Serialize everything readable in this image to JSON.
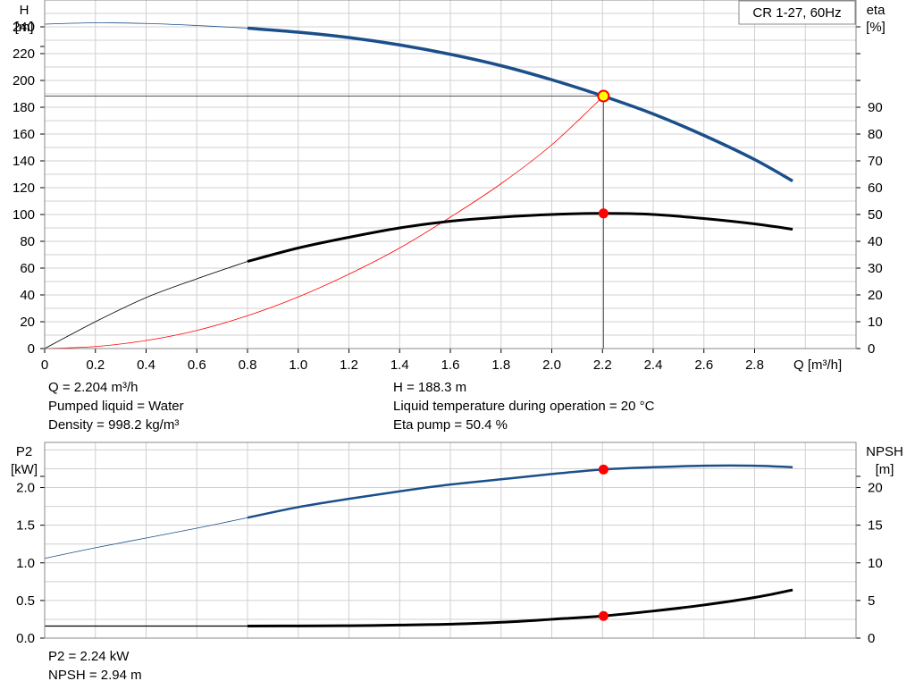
{
  "legend_label": "CR 1-27, 60Hz",
  "colors": {
    "blue": "#1b4f8a",
    "black": "#000000",
    "red": "#ff0000",
    "op_point_fill": "#ffff00",
    "grid": "#d0d0d0"
  },
  "info_top": {
    "q": "Q = 2.204 m³/h",
    "liquid": "Pumped liquid = Water",
    "density": "Density = 998.2 kg/m³",
    "h": "H = 188.3 m",
    "temp": "Liquid temperature during operation = 20 °C",
    "eta": "Eta pump = 50.4 %"
  },
  "info_bottom": {
    "p2": "P2 = 2.24 kW",
    "npsh": "NPSH = 2.94 m"
  },
  "chart_data": [
    {
      "type": "line",
      "title": "",
      "x_label": "Q [m³/h]",
      "y_label_left": [
        "H",
        "[m]"
      ],
      "y_label_right": [
        "eta",
        "[%]"
      ],
      "xlim": [
        0,
        3.2
      ],
      "ylim_left": [
        0,
        260
      ],
      "ylim_right": [
        0,
        130
      ],
      "x_ticks": [
        "0",
        "0.2",
        "0.4",
        "0.6",
        "0.8",
        "1.0",
        "1.2",
        "1.4",
        "1.6",
        "1.8",
        "2.0",
        "2.2",
        "2.4",
        "2.6",
        "2.8"
      ],
      "y_ticks_left": [
        0,
        20,
        40,
        60,
        80,
        100,
        120,
        140,
        160,
        180,
        200,
        220,
        240
      ],
      "y_ticks_right": [
        0,
        10,
        20,
        30,
        40,
        50,
        60,
        70,
        80,
        90
      ],
      "grid": true,
      "operating_point": {
        "q": 2.204,
        "h": 188.3,
        "eta": 50.4
      },
      "series": [
        {
          "key": "head",
          "axis": "left",
          "points": [
            [
              0,
              242
            ],
            [
              0.2,
              243
            ],
            [
              0.4,
              242.5
            ],
            [
              0.6,
              241
            ],
            [
              0.8,
              239
            ],
            [
              1.0,
              236
            ],
            [
              1.2,
              232
            ],
            [
              1.4,
              226.5
            ],
            [
              1.6,
              219.5
            ],
            [
              1.8,
              211
            ],
            [
              2.0,
              200.5
            ],
            [
              2.2,
              188.5
            ],
            [
              2.4,
              175
            ],
            [
              2.6,
              159
            ],
            [
              2.8,
              141
            ],
            [
              2.95,
              125
            ]
          ],
          "bold_from": 0.8
        },
        {
          "key": "eta",
          "axis": "right",
          "points": [
            [
              0,
              0
            ],
            [
              0.2,
              10
            ],
            [
              0.4,
              19
            ],
            [
              0.6,
              26
            ],
            [
              0.8,
              32.5
            ],
            [
              1.0,
              37.5
            ],
            [
              1.2,
              41.5
            ],
            [
              1.4,
              45
            ],
            [
              1.6,
              47.5
            ],
            [
              1.8,
              49
            ],
            [
              2.0,
              50
            ],
            [
              2.2,
              50.4
            ],
            [
              2.4,
              50
            ],
            [
              2.6,
              48.5
            ],
            [
              2.8,
              46.5
            ],
            [
              2.95,
              44.5
            ]
          ],
          "bold_from": 0.8
        },
        {
          "key": "system",
          "axis": "left",
          "points": [
            [
              0,
              0
            ],
            [
              0.2,
              1.5
            ],
            [
              0.4,
              6
            ],
            [
              0.6,
              13.5
            ],
            [
              0.8,
              24.5
            ],
            [
              1.0,
              38.5
            ],
            [
              1.2,
              55.5
            ],
            [
              1.4,
              75
            ],
            [
              1.6,
              98
            ],
            [
              1.8,
              123
            ],
            [
              2.0,
              152
            ],
            [
              2.204,
              188.3
            ]
          ]
        }
      ]
    },
    {
      "type": "line",
      "title": "",
      "x_label": "",
      "y_label_left": [
        "P2",
        "[kW]"
      ],
      "y_label_right": [
        "NPSH",
        "[m]"
      ],
      "xlim": [
        0,
        3.2
      ],
      "ylim_left": [
        0,
        2.6
      ],
      "ylim_right": [
        0,
        26
      ],
      "y_ticks_left": [
        "0.0",
        "0.5",
        "1.0",
        "1.5",
        "2.0"
      ],
      "y_ticks_right": [
        0,
        5,
        10,
        15,
        20
      ],
      "grid": true,
      "operating_point": {
        "q": 2.204,
        "p2": 2.24,
        "npsh": 2.94
      },
      "series": [
        {
          "key": "p2",
          "axis": "left",
          "points": [
            [
              0,
              1.06
            ],
            [
              0.2,
              1.2
            ],
            [
              0.4,
              1.33
            ],
            [
              0.6,
              1.46
            ],
            [
              0.8,
              1.6
            ],
            [
              1.0,
              1.74
            ],
            [
              1.2,
              1.85
            ],
            [
              1.4,
              1.95
            ],
            [
              1.6,
              2.04
            ],
            [
              1.8,
              2.11
            ],
            [
              2.0,
              2.18
            ],
            [
              2.2,
              2.24
            ],
            [
              2.4,
              2.27
            ],
            [
              2.6,
              2.29
            ],
            [
              2.8,
              2.29
            ],
            [
              2.95,
              2.27
            ]
          ],
          "bold_from": 0.8
        },
        {
          "key": "npsh",
          "axis": "right",
          "points": [
            [
              0,
              1.6
            ],
            [
              0.4,
              1.6
            ],
            [
              0.8,
              1.6
            ],
            [
              1.0,
              1.62
            ],
            [
              1.2,
              1.65
            ],
            [
              1.4,
              1.73
            ],
            [
              1.6,
              1.85
            ],
            [
              1.8,
              2.1
            ],
            [
              2.0,
              2.5
            ],
            [
              2.2,
              2.94
            ],
            [
              2.4,
              3.6
            ],
            [
              2.6,
              4.4
            ],
            [
              2.8,
              5.4
            ],
            [
              2.95,
              6.4
            ]
          ],
          "bold_from": 0.8
        }
      ]
    }
  ]
}
